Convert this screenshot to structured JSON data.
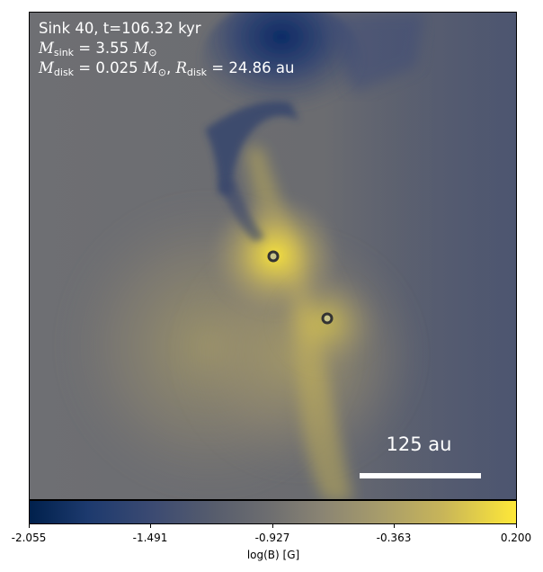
{
  "annotation": {
    "line1": "Sink 40, t=106.32 kyr",
    "msink_symbol": "M",
    "msink_sub": "sink",
    "msink_value": " = 3.55 ",
    "msink_unit_symbol": "M",
    "msink_unit_sub": "⊙",
    "mdisk_symbol": "M",
    "mdisk_sub": "disk",
    "mdisk_value": " = 0.025 ",
    "mdisk_unit_symbol": "M",
    "mdisk_unit_sub": "⊙",
    "mdisk_sep": ", ",
    "rdisk_symbol": "R",
    "rdisk_sub": "disk",
    "rdisk_value": " = 24.86 au"
  },
  "scalebar": {
    "label": "125 au"
  },
  "colorbar": {
    "label": "log(B) [G]",
    "ticks": [
      "-2.055",
      "-1.491",
      "-0.927",
      "-0.363",
      "0.200"
    ],
    "colors": {
      "low": "#00204c",
      "mid": "#6f6f70",
      "high": "#fee838"
    }
  },
  "sinks": [
    {
      "name": "sink-primary"
    },
    {
      "name": "sink-secondary"
    }
  ]
}
